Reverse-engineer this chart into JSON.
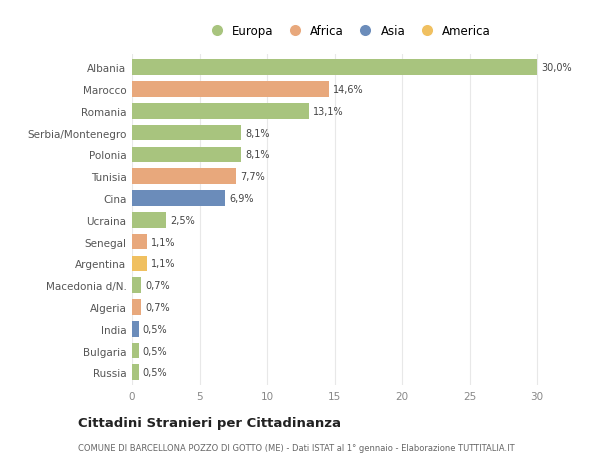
{
  "countries": [
    "Albania",
    "Marocco",
    "Romania",
    "Serbia/Montenegro",
    "Polonia",
    "Tunisia",
    "Cina",
    "Ucraina",
    "Senegal",
    "Argentina",
    "Macedonia d/N.",
    "Algeria",
    "India",
    "Bulgaria",
    "Russia"
  ],
  "values": [
    30.0,
    14.6,
    13.1,
    8.1,
    8.1,
    7.7,
    6.9,
    2.5,
    1.1,
    1.1,
    0.7,
    0.7,
    0.5,
    0.5,
    0.5
  ],
  "labels": [
    "30,0%",
    "14,6%",
    "13,1%",
    "8,1%",
    "8,1%",
    "7,7%",
    "6,9%",
    "2,5%",
    "1,1%",
    "1,1%",
    "0,7%",
    "0,7%",
    "0,5%",
    "0,5%",
    "0,5%"
  ],
  "continents": [
    "Europa",
    "Africa",
    "Europa",
    "Europa",
    "Europa",
    "Africa",
    "Asia",
    "Europa",
    "Africa",
    "America",
    "Europa",
    "Africa",
    "Asia",
    "Europa",
    "Europa"
  ],
  "colors": {
    "Europa": "#a8c47e",
    "Africa": "#e8a87c",
    "Asia": "#6b8cba",
    "America": "#f0c060"
  },
  "legend_order": [
    "Europa",
    "Africa",
    "Asia",
    "America"
  ],
  "bg_color": "#ffffff",
  "grid_color": "#e8e8e8",
  "title": "Cittadini Stranieri per Cittadinanza",
  "subtitle": "COMUNE DI BARCELLONA POZZO DI GOTTO (ME) - Dati ISTAT al 1° gennaio - Elaborazione TUTTITALIA.IT",
  "xlabel_range": [
    0,
    5,
    10,
    15,
    20,
    25,
    30
  ],
  "xlim": [
    0,
    32
  ]
}
